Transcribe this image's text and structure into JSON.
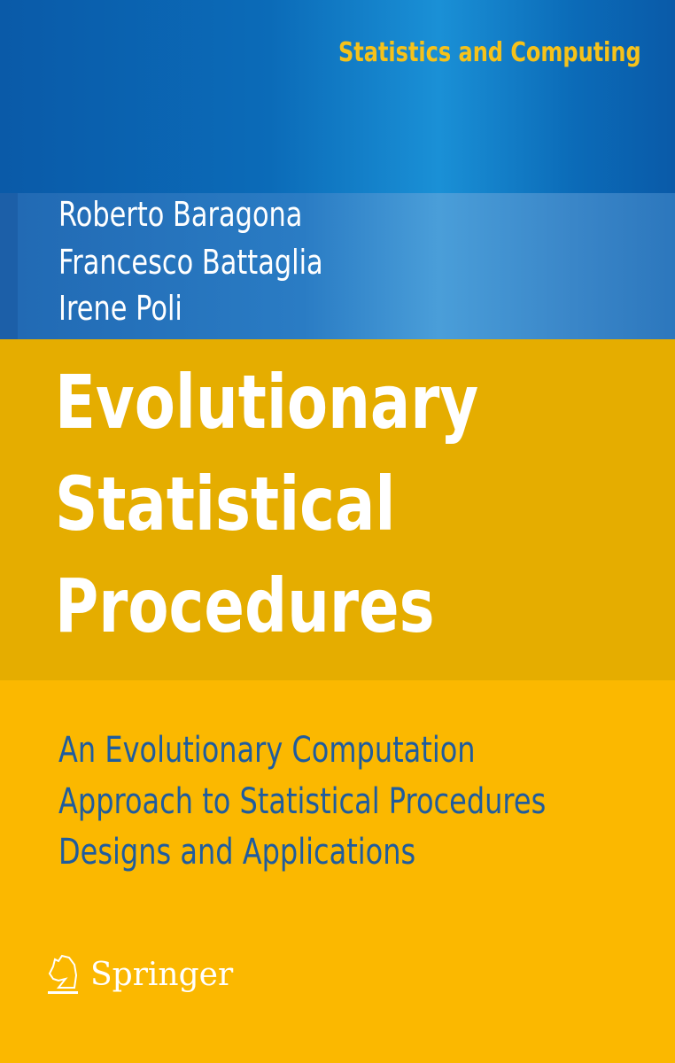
{
  "series": "Statistics and Computing",
  "authors": [
    "Roberto Baragona",
    "Francesco Battaglia",
    "Irene Poli"
  ],
  "title_lines": [
    "Evolutionary",
    "Statistical",
    "Procedures"
  ],
  "subtitle_lines": [
    "An Evolutionary Computation",
    "Approach to Statistical Procedures",
    "Designs and Applications"
  ],
  "publisher": "Springer",
  "colors": {
    "blue": "#0b6bb8",
    "gold": "#e5ad00",
    "yellow": "#fbb800",
    "subtitle": "#1f5c9e",
    "series": "#f6c21a"
  }
}
